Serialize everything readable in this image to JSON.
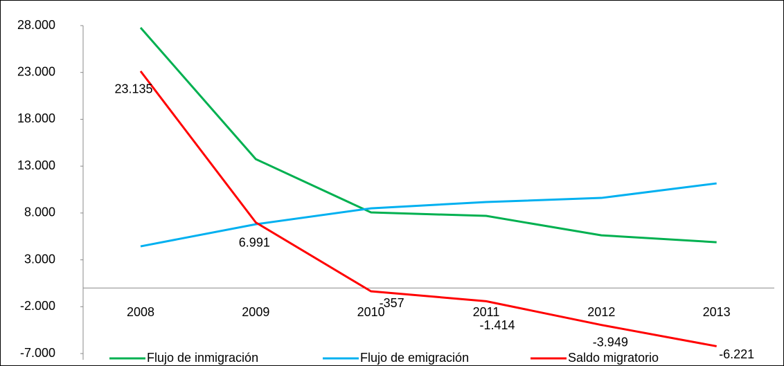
{
  "chart_data": {
    "type": "line",
    "categories": [
      "2008",
      "2009",
      "2010",
      "2011",
      "2012",
      "2013"
    ],
    "series": [
      {
        "name": "Flujo de inmigración",
        "color": "#00b050",
        "values": [
          27780,
          13750,
          8060,
          7690,
          5620,
          4880
        ]
      },
      {
        "name": "Flujo de emigración",
        "color": "#00b0f0",
        "values": [
          4440,
          6800,
          8500,
          9170,
          9610,
          11160
        ]
      },
      {
        "name": "Saldo migratorio",
        "color": "#ff0000",
        "values": [
          23135,
          6991,
          -357,
          -1414,
          -3949,
          -6221
        ],
        "value_labels": [
          "23.135",
          "6.991",
          "-357",
          "-1.414",
          "-3.949",
          "-6.221"
        ]
      }
    ],
    "ylim": [
      -7000,
      28000
    ],
    "yticks": [
      {
        "value": -7000,
        "label": "-7.000"
      },
      {
        "value": -2000,
        "label": "-2.000"
      },
      {
        "value": 3000,
        "label": "3.000"
      },
      {
        "value": 8000,
        "label": "8.000"
      },
      {
        "value": 13000,
        "label": "13.000"
      },
      {
        "value": 18000,
        "label": "18.000"
      },
      {
        "value": 23000,
        "label": "23.000"
      },
      {
        "value": 28000,
        "label": "28.000"
      }
    ],
    "legend": "bottom"
  }
}
